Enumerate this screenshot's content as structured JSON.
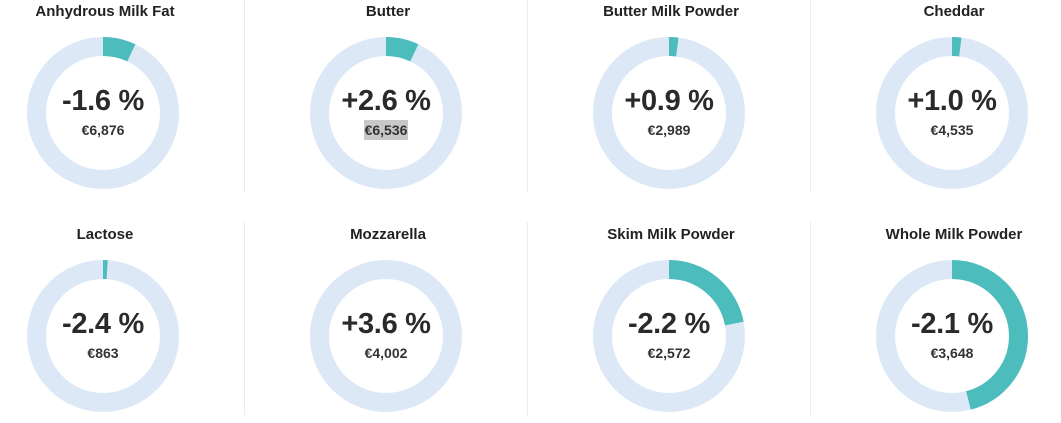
{
  "colors": {
    "ring_track": "#dce8f6",
    "ring_fill": "#4dbcbd",
    "divider": "#ebebeb"
  },
  "products": [
    {
      "name": "Anhydrous Milk Fat",
      "change": "-1.6 %",
      "price": "€6,876",
      "share": 0.07,
      "highlighted": false
    },
    {
      "name": "Butter",
      "change": "+2.6 %",
      "price": "€6,536",
      "share": 0.07,
      "highlighted": true
    },
    {
      "name": "Butter Milk Powder",
      "change": "+0.9 %",
      "price": "€2,989",
      "share": 0.02,
      "highlighted": false
    },
    {
      "name": "Cheddar",
      "change": "+1.0 %",
      "price": "€4,535",
      "share": 0.02,
      "highlighted": false
    },
    {
      "name": "Lactose",
      "change": "-2.4 %",
      "price": "€863",
      "share": 0.01,
      "highlighted": false
    },
    {
      "name": "Mozzarella",
      "change": "+3.6 %",
      "price": "€4,002",
      "share": 0.0,
      "highlighted": false
    },
    {
      "name": "Skim Milk Powder",
      "change": "-2.2 %",
      "price": "€2,572",
      "share": 0.22,
      "highlighted": false
    },
    {
      "name": "Whole Milk Powder",
      "change": "-2.1 %",
      "price": "€3,648",
      "share": 0.46,
      "highlighted": false
    }
  ]
}
